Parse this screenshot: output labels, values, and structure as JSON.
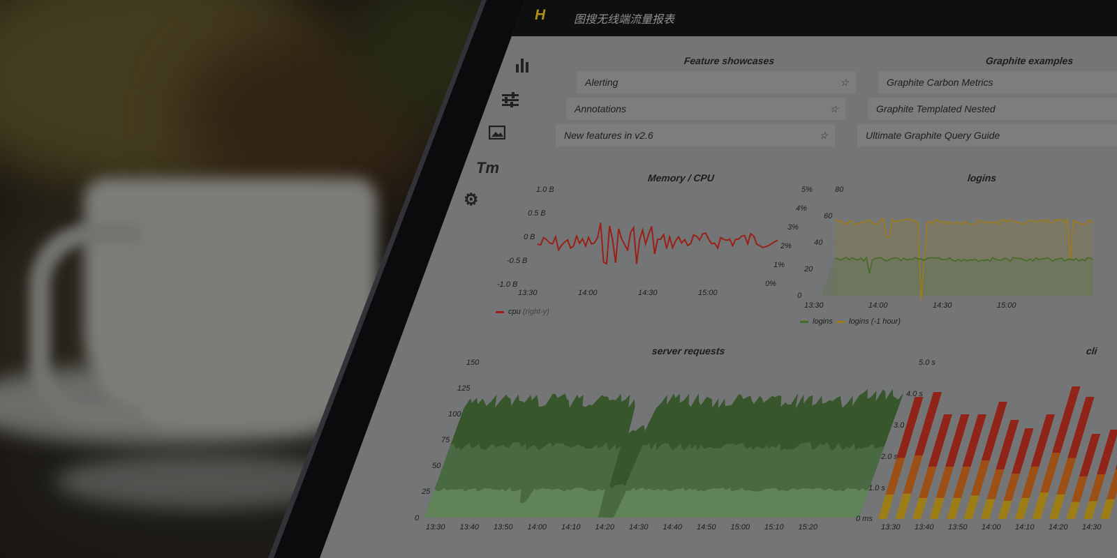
{
  "app": {
    "logo": "H",
    "title": "图搜无线端流量报表"
  },
  "sidebar": {
    "icons": [
      "bar-chart-icon",
      "sliders-icon",
      "image-icon",
      "text-size-icon",
      "gear-icon"
    ],
    "text_size_glyph": "Tт"
  },
  "panels": {
    "feature_showcases": {
      "title": "Feature showcases",
      "items": [
        "Alerting",
        "Annotations",
        "New features in v2.6"
      ],
      "star": "☆"
    },
    "graphite_examples": {
      "title": "Graphite examples",
      "items": [
        "Graphite Carbon Metrics",
        "Graphite Templated Nested",
        "Ultimate Graphite Query Guide"
      ]
    },
    "memory_cpu": {
      "title": "Memory / CPU",
      "left_ticks": [
        "1.0 B",
        "0.5 B",
        "0 B",
        "-0.5 B",
        "-1.0 B"
      ],
      "right_ticks": [
        "5%",
        "4%",
        "3%",
        "2%",
        "1%",
        "0%"
      ],
      "x_ticks": [
        "13:30",
        "14:00",
        "14:30",
        "15:00"
      ],
      "legend": {
        "name": "cpu",
        "note": "(right-y)",
        "color": "#b02418"
      }
    },
    "logins": {
      "title": "logins",
      "y_ticks": [
        "80",
        "60",
        "40",
        "20",
        "0"
      ],
      "x_ticks": [
        "13:30",
        "14:00",
        "14:30",
        "15:00"
      ],
      "legend": [
        {
          "name": "logins",
          "color": "#4d7a2a"
        },
        {
          "name": "logins (-1 hour)",
          "color": "#b58d1c"
        }
      ]
    },
    "server_requests": {
      "title": "server requests",
      "y_ticks": [
        "150",
        "125",
        "100",
        "75",
        "50",
        "25",
        "0"
      ],
      "x_ticks": [
        "13:30",
        "13:40",
        "13:50",
        "14:00",
        "14:10",
        "14:20",
        "14:30",
        "14:40",
        "14:50",
        "15:00",
        "15:10",
        "15:20"
      ]
    },
    "client_side": {
      "title": "cli",
      "y_ticks": [
        "5.0 s",
        "4.0 s",
        "3.0 s",
        "2.0 s",
        "1.0 s",
        "0 ms"
      ],
      "x_ticks": [
        "13:30",
        "13:40",
        "13:50",
        "14:00",
        "14:10",
        "14:20",
        "14:30"
      ],
      "colors": [
        "#b48f1a",
        "#b35c18",
        "#a62a1c"
      ]
    }
  }
}
